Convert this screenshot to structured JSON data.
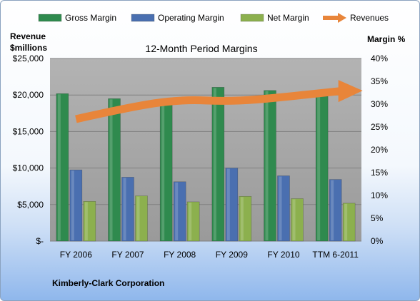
{
  "chart_data": {
    "type": "bar",
    "title": "12-Month Period Margins",
    "categories": [
      "FY 2006",
      "FY 2007",
      "FY 2008",
      "FY 2009",
      "FY 2010",
      "TTM 6-2011"
    ],
    "series": [
      {
        "name": "Gross Margin",
        "axis": "right",
        "unit": "percent",
        "values": [
          32.3,
          31.2,
          30.2,
          33.7,
          33.0,
          31.7
        ],
        "color": "#2f8a4e"
      },
      {
        "name": "Operating Margin",
        "axis": "right",
        "unit": "percent",
        "values": [
          15.6,
          14.0,
          13.0,
          16.0,
          14.3,
          13.5
        ],
        "color": "#4a6fb0"
      },
      {
        "name": "Net Margin",
        "axis": "right",
        "unit": "percent",
        "values": [
          8.7,
          9.9,
          8.6,
          9.8,
          9.3,
          8.3
        ],
        "color": "#8cb04e"
      },
      {
        "name": "Revenues",
        "axis": "left",
        "type": "arrow",
        "values": [
          16700,
          18300,
          19400,
          19100,
          19700,
          20500
        ],
        "color": "#e8853a"
      }
    ],
    "left_axis": {
      "label_line1": "Revenue",
      "label_line2": "$millions",
      "range": [
        0,
        25000
      ],
      "ticks": [
        "$-",
        "$5,000",
        "$10,000",
        "$15,000",
        "$20,000",
        "$25,000"
      ]
    },
    "right_axis": {
      "label": "Margin %",
      "range": [
        0,
        40
      ],
      "ticks": [
        "0%",
        "5%",
        "10%",
        "15%",
        "20%",
        "25%",
        "30%",
        "35%",
        "40%"
      ]
    },
    "legend_position": "top",
    "plot_background": "#a6a6a6",
    "grid": true
  },
  "footer": {
    "company": "Kimberly-Clark Corporation"
  }
}
